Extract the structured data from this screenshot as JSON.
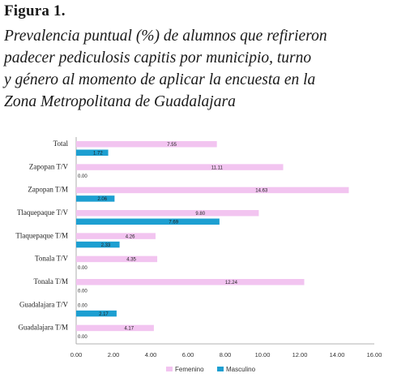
{
  "figure": {
    "label": "Figura 1.",
    "caption_lines": [
      "Prevalencia puntual (%) de alumnos que refirieron",
      "padecer pediculosis capitis por municipio, turno",
      "y género al momento de aplicar la encuesta en la",
      "Zona Metropolitana de Guadalajara"
    ]
  },
  "chart_data": {
    "type": "bar",
    "orientation": "horizontal",
    "categories": [
      "Total",
      "Zapopan T/V",
      "Zapopan T/M",
      "Tlaquepaque T/V",
      "Tlaquepaque T/M",
      "Tonala T/V",
      "Tonala T/M",
      "Guadalajara T/V",
      "Guadalajara T/M"
    ],
    "series": [
      {
        "name": "Femenino",
        "color": "#f2c4f0",
        "values": [
          7.55,
          11.11,
          14.63,
          9.8,
          4.26,
          4.35,
          12.24,
          0.0,
          4.17
        ],
        "labels": [
          "7.55",
          "11.11",
          "14.63",
          "9.80",
          "4.26",
          "4.35",
          "12.24",
          "0.00",
          "4.17"
        ]
      },
      {
        "name": "Masculino",
        "color": "#1d9fd1",
        "values": [
          1.72,
          0.0,
          2.06,
          7.69,
          2.33,
          0.0,
          0.0,
          2.17,
          0.0
        ],
        "labels": [
          "1.72",
          "0.00",
          "2.06",
          "7.69",
          "2.33",
          "0.00",
          "0.00",
          "2.17",
          "0.00"
        ]
      }
    ],
    "xlim": [
      0,
      16
    ],
    "xticks": [
      "0.00",
      "2.00",
      "4.00",
      "6.00",
      "8.00",
      "10.00",
      "12.00",
      "14.00",
      "16.00"
    ],
    "xlabel": "",
    "ylabel": "",
    "grid": false,
    "legend_position": "bottom"
  }
}
